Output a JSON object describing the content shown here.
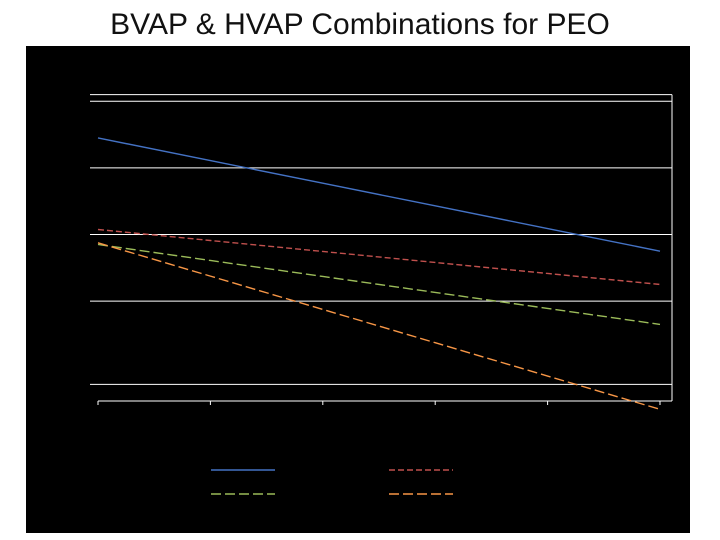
{
  "slide": {
    "title": "BVAP & HVAP Combinations for PEO"
  },
  "chart_data": {
    "type": "line",
    "title": "",
    "xlabel": "",
    "ylabel": "",
    "x": [
      0,
      1,
      2,
      3,
      4,
      5
    ],
    "xlim": [
      0,
      5
    ],
    "ylim": [
      0,
      100
    ],
    "gridlines": [
      5,
      30,
      50,
      70,
      90,
      92
    ],
    "legend_position": "bottom",
    "series": [
      {
        "name": "",
        "color": "#4472c4",
        "dash": "solid",
        "values": [
          79,
          72.2,
          65.4,
          58.6,
          51.8,
          45
        ]
      },
      {
        "name": "",
        "color": "#c0504d",
        "dash": "dashed",
        "values": [
          51.5,
          48.2,
          44.9,
          41.6,
          38.3,
          35
        ]
      },
      {
        "name": "",
        "color": "#9bbb59",
        "dash": "longdash",
        "values": [
          47,
          42.2,
          37.4,
          32.6,
          27.8,
          23
        ]
      },
      {
        "name": "",
        "color": "#f79646",
        "dash": "longdash",
        "values": [
          47.5,
          37.5,
          27.5,
          17.5,
          7.5,
          -2.5
        ]
      }
    ]
  }
}
